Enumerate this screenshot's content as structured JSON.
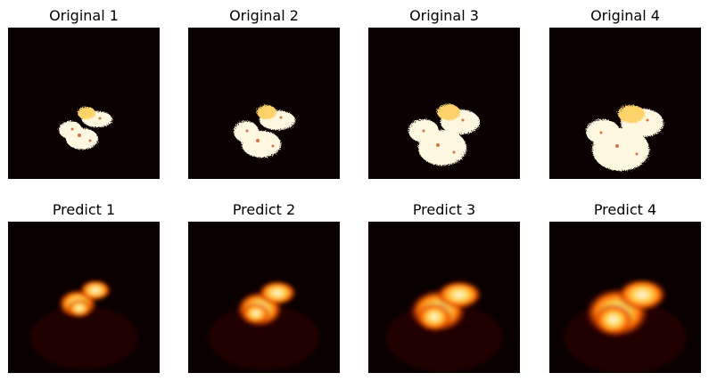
{
  "figure": {
    "row1_titles": [
      "Original 1",
      "Original 2",
      "Original 3",
      "Original 4"
    ],
    "row2_titles": [
      "Predict 1",
      "Predict 2",
      "Predict 3",
      "Predict 4"
    ],
    "colormap": "hot",
    "background_color": "#0b0000",
    "bright_color": "#fffbe8",
    "mid_color": "#ff6a00"
  }
}
